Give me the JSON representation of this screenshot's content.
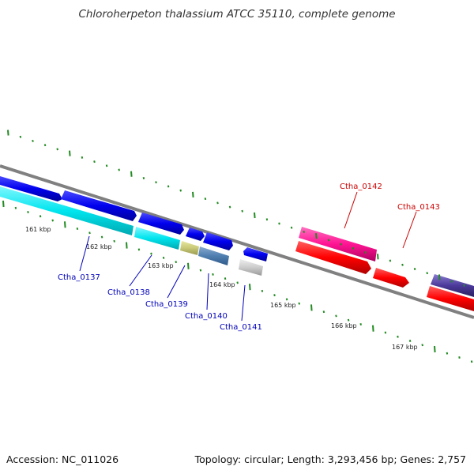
{
  "title": "Chloroherpeton thalassium ATCC 35110, complete genome",
  "footer": {
    "accession": "Accession: NC_011026",
    "summary": "Topology: circular; Length: 3,293,456 bp; Genes: 2,757"
  },
  "ticks": [
    {
      "label": "161 kbp"
    },
    {
      "label": "162 kbp"
    },
    {
      "label": "163 kbp"
    },
    {
      "label": "164 kbp"
    },
    {
      "label": "165 kbp"
    },
    {
      "label": "166 kbp"
    },
    {
      "label": "167 kbp"
    }
  ],
  "genes": [
    {
      "name": "Ctha_0137",
      "color": "#0000bb"
    },
    {
      "name": "Ctha_0138",
      "color": "#0000bb"
    },
    {
      "name": "Ctha_0139",
      "color": "#0000bb"
    },
    {
      "name": "Ctha_0140",
      "color": "#0000bb"
    },
    {
      "name": "Ctha_0141",
      "color": "#0000bb"
    },
    {
      "name": "Ctha_0142",
      "color": "#cc0000"
    },
    {
      "name": "Ctha_0143",
      "color": "#cc0000"
    }
  ],
  "colors": {
    "backbone": "#808080",
    "tick": "#228b22",
    "forward_cds": "#0000ee",
    "reverse_cds": "#ff0000",
    "rna": "#00e5ee",
    "highlight": "#ff1493"
  }
}
